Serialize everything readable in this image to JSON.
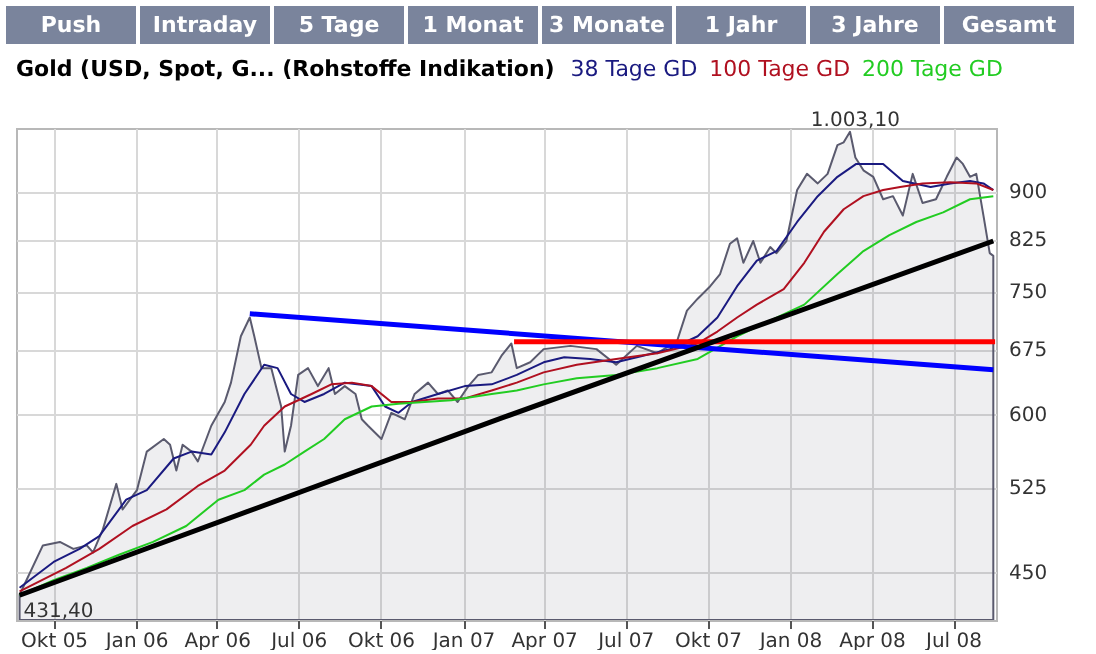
{
  "chart_data": {
    "type": "line",
    "title": "Gold (USD, Spot, G... (Rohstoffe Indikation)",
    "annotations": [
      "Push",
      "Intraday",
      "5 Tage",
      "1 Monat",
      "3 Monate",
      "1 Jahr",
      "3 Jahre",
      "Gesamt",
      {
        "text": "1.003,10",
        "x": "2008-03-14",
        "y": 1003.1
      },
      {
        "text": "431,40",
        "x": "2005-08-24",
        "y": 431.4
      }
    ],
    "xlim": [
      "2005-08-20",
      "2008-08-18"
    ],
    "xticks": [
      {
        "value": "2005-10-01",
        "label": "Okt 05"
      },
      {
        "value": "2006-01-01",
        "label": "Jan 06"
      },
      {
        "value": "2006-04-01",
        "label": "Apr 06"
      },
      {
        "value": "2006-07-01",
        "label": "Jul 06"
      },
      {
        "value": "2006-10-01",
        "label": "Okt 06"
      },
      {
        "value": "2007-01-01",
        "label": "Jan 07"
      },
      {
        "value": "2007-04-01",
        "label": "Apr 07"
      },
      {
        "value": "2007-07-01",
        "label": "Jul 07"
      },
      {
        "value": "2007-10-01",
        "label": "Okt 07"
      },
      {
        "value": "2008-01-01",
        "label": "Jan 08"
      },
      {
        "value": "2008-04-01",
        "label": "Apr 08"
      },
      {
        "value": "2008-07-01",
        "label": "Jul 08"
      }
    ],
    "ylim": [
      412,
      1010
    ],
    "yticks": [
      450,
      525,
      600,
      675,
      750,
      825,
      900
    ],
    "log": true,
    "grid": true,
    "legend": "top",
    "marker": "none",
    "line_style": "solid",
    "series": [
      {
        "type": "area",
        "color": "#5a5a6e",
        "x": [
          "2005-08-24",
          "2005-09-19",
          "2005-10-08",
          "2005-10-23",
          "2005-11-07",
          "2005-11-14",
          "2005-11-25",
          "2005-12-10",
          "2005-12-17",
          "2006-01-02",
          "2006-01-13",
          "2006-02-01",
          "2006-02-08",
          "2006-02-15",
          "2006-02-22",
          "2006-03-04",
          "2006-03-11",
          "2006-03-26",
          "2006-04-10",
          "2006-04-17",
          "2006-04-28",
          "2006-05-08",
          "2006-05-13",
          "2006-05-21",
          "2006-06-01",
          "2006-06-12",
          "2006-06-16",
          "2006-06-23",
          "2006-07-01",
          "2006-07-12",
          "2006-07-23",
          "2006-08-04",
          "2006-08-11",
          "2006-08-22",
          "2006-09-03",
          "2006-09-10",
          "2006-09-17",
          "2006-10-02",
          "2006-10-13",
          "2006-10-28",
          "2006-11-08",
          "2006-11-23",
          "2006-12-04",
          "2006-12-15",
          "2006-12-26",
          "2007-01-07",
          "2007-01-18",
          "2007-02-02",
          "2007-02-13",
          "2007-02-24",
          "2007-03-02",
          "2007-03-17",
          "2007-04-01",
          "2007-05-01",
          "2007-05-30",
          "2007-06-21",
          "2007-07-14",
          "2007-08-06",
          "2007-08-28",
          "2007-09-08",
          "2007-09-20",
          "2007-10-04",
          "2007-10-15",
          "2007-10-26",
          "2007-11-03",
          "2007-11-10",
          "2007-11-21",
          "2007-11-29",
          "2007-12-10",
          "2007-12-17",
          "2007-12-28",
          "2008-01-09",
          "2008-01-20",
          "2008-02-01",
          "2008-02-12",
          "2008-02-23",
          "2008-03-01",
          "2008-03-08",
          "2008-03-14",
          "2008-03-23",
          "2008-04-03",
          "2008-04-14",
          "2008-04-25",
          "2008-05-06",
          "2008-05-17",
          "2008-05-28",
          "2008-06-12",
          "2008-06-24",
          "2008-07-05",
          "2008-07-12",
          "2008-07-20",
          "2008-07-27",
          "2008-08-04",
          "2008-08-11",
          "2008-08-15"
        ],
        "values": [
          431.4,
          472,
          475,
          469,
          472,
          466,
          486,
          528,
          504,
          522,
          560,
          573,
          567,
          541,
          567,
          560,
          550,
          587,
          613,
          635,
          691,
          715,
          691,
          652,
          652,
          608,
          560,
          587,
          644,
          652,
          631,
          652,
          622,
          631,
          622,
          594,
          587,
          573,
          601,
          594,
          622,
          635,
          622,
          626,
          613,
          631,
          644,
          647,
          667,
          682,
          652,
          659,
          675,
          679,
          675,
          656,
          679,
          670,
          685,
          724,
          740,
          757,
          774,
          818,
          826,
          790,
          822,
          790,
          813,
          804,
          822,
          902,
          929,
          913,
          929,
          979,
          984,
          1003.1,
          957,
          935,
          924,
          887,
          892,
          861,
          929,
          881,
          887,
          924,
          957,
          946,
          924,
          929,
          861,
          804,
          800
        ]
      },
      {
        "name": "38 Tage GD",
        "color": "#1a1a80",
        "x": [
          "2005-08-24",
          "2005-10-01",
          "2005-10-30",
          "2005-11-21",
          "2005-12-21",
          "2006-01-13",
          "2006-02-12",
          "2006-03-04",
          "2006-03-26",
          "2006-04-10",
          "2006-05-02",
          "2006-05-24",
          "2006-06-08",
          "2006-06-23",
          "2006-07-08",
          "2006-07-30",
          "2006-08-22",
          "2006-09-21",
          "2006-10-06",
          "2006-10-21",
          "2006-11-05",
          "2006-12-04",
          "2007-01-03",
          "2007-02-02",
          "2007-03-02",
          "2007-04-01",
          "2007-04-24",
          "2007-05-23",
          "2007-06-21",
          "2007-07-21",
          "2007-08-20",
          "2007-09-20",
          "2007-10-12",
          "2007-11-03",
          "2007-11-25",
          "2007-12-17",
          "2008-01-09",
          "2008-02-01",
          "2008-02-23",
          "2008-03-15",
          "2008-04-14",
          "2008-05-06",
          "2008-06-06",
          "2008-06-28",
          "2008-07-20",
          "2008-08-04",
          "2008-08-15"
        ],
        "values": [
          437,
          458,
          469,
          480,
          513,
          522,
          553,
          560,
          557,
          580,
          622,
          656,
          652,
          622,
          613,
          622,
          635,
          631,
          608,
          601,
          613,
          622,
          631,
          633,
          644,
          659,
          665,
          663,
          659,
          667,
          675,
          691,
          715,
          757,
          793,
          807,
          851,
          892,
          924,
          946,
          946,
          917,
          907,
          913,
          917,
          913,
          902
        ]
      },
      {
        "name": "100 Tage GD",
        "color": "#b01020",
        "x": [
          "2005-08-24",
          "2005-10-15",
          "2005-11-21",
          "2005-12-28",
          "2006-02-04",
          "2006-03-11",
          "2006-04-10",
          "2006-05-09",
          "2006-05-24",
          "2006-06-16",
          "2006-07-16",
          "2006-08-07",
          "2006-08-30",
          "2006-09-21",
          "2006-10-13",
          "2006-11-05",
          "2006-12-04",
          "2007-01-03",
          "2007-02-02",
          "2007-03-02",
          "2007-04-01",
          "2007-05-08",
          "2007-06-21",
          "2007-08-06",
          "2007-09-20",
          "2007-10-12",
          "2007-11-03",
          "2007-11-25",
          "2007-12-25",
          "2008-01-17",
          "2008-02-08",
          "2008-03-01",
          "2008-03-23",
          "2008-04-14",
          "2008-05-03",
          "2008-05-28",
          "2008-06-28",
          "2008-07-27",
          "2008-08-15"
        ],
        "values": [
          434,
          453,
          469,
          489,
          504,
          526,
          541,
          567,
          587,
          608,
          622,
          633,
          635,
          631,
          613,
          613,
          617,
          617,
          626,
          635,
          647,
          656,
          663,
          670,
          682,
          697,
          715,
          732,
          753,
          790,
          836,
          871,
          892,
          902,
          907,
          913,
          915,
          913,
          902
        ]
      },
      {
        "name": "200 Tage GD",
        "color": "#22cc22",
        "x": [
          "2005-08-24",
          "2005-10-01",
          "2005-11-07",
          "2005-12-13",
          "2006-01-20",
          "2006-02-26",
          "2006-04-03",
          "2006-05-02",
          "2006-05-24",
          "2006-06-16",
          "2006-07-08",
          "2006-07-30",
          "2006-08-22",
          "2006-09-21",
          "2006-10-21",
          "2006-11-19",
          "2006-12-19",
          "2007-02-02",
          "2007-03-02",
          "2007-04-01",
          "2007-05-08",
          "2007-06-21",
          "2007-08-06",
          "2007-09-20",
          "2007-11-03",
          "2007-12-17",
          "2008-01-17",
          "2008-02-23",
          "2008-03-23",
          "2008-04-21",
          "2008-05-21",
          "2008-06-20",
          "2008-07-20",
          "2008-08-15"
        ],
        "values": [
          431,
          443,
          453,
          464,
          475,
          489,
          513,
          522,
          537,
          547,
          560,
          573,
          594,
          608,
          611,
          613,
          615,
          622,
          626,
          633,
          640,
          644,
          652,
          663,
          691,
          715,
          732,
          774,
          807,
          831,
          851,
          866,
          887,
          892
        ]
      },
      {
        "color": "#0000ff",
        "x": [
          "2006-05-08",
          "2008-08-15"
        ],
        "values": [
          720,
          650
        ]
      },
      {
        "color": "#ff0000",
        "x": [
          "2007-02-27",
          "2008-08-17"
        ],
        "values": [
          684,
          684
        ]
      },
      {
        "color": "#000000",
        "x": [
          "2005-08-24",
          "2007-02-15",
          "2008-08-15"
        ],
        "values": [
          431,
          596,
          822
        ]
      }
    ]
  }
}
